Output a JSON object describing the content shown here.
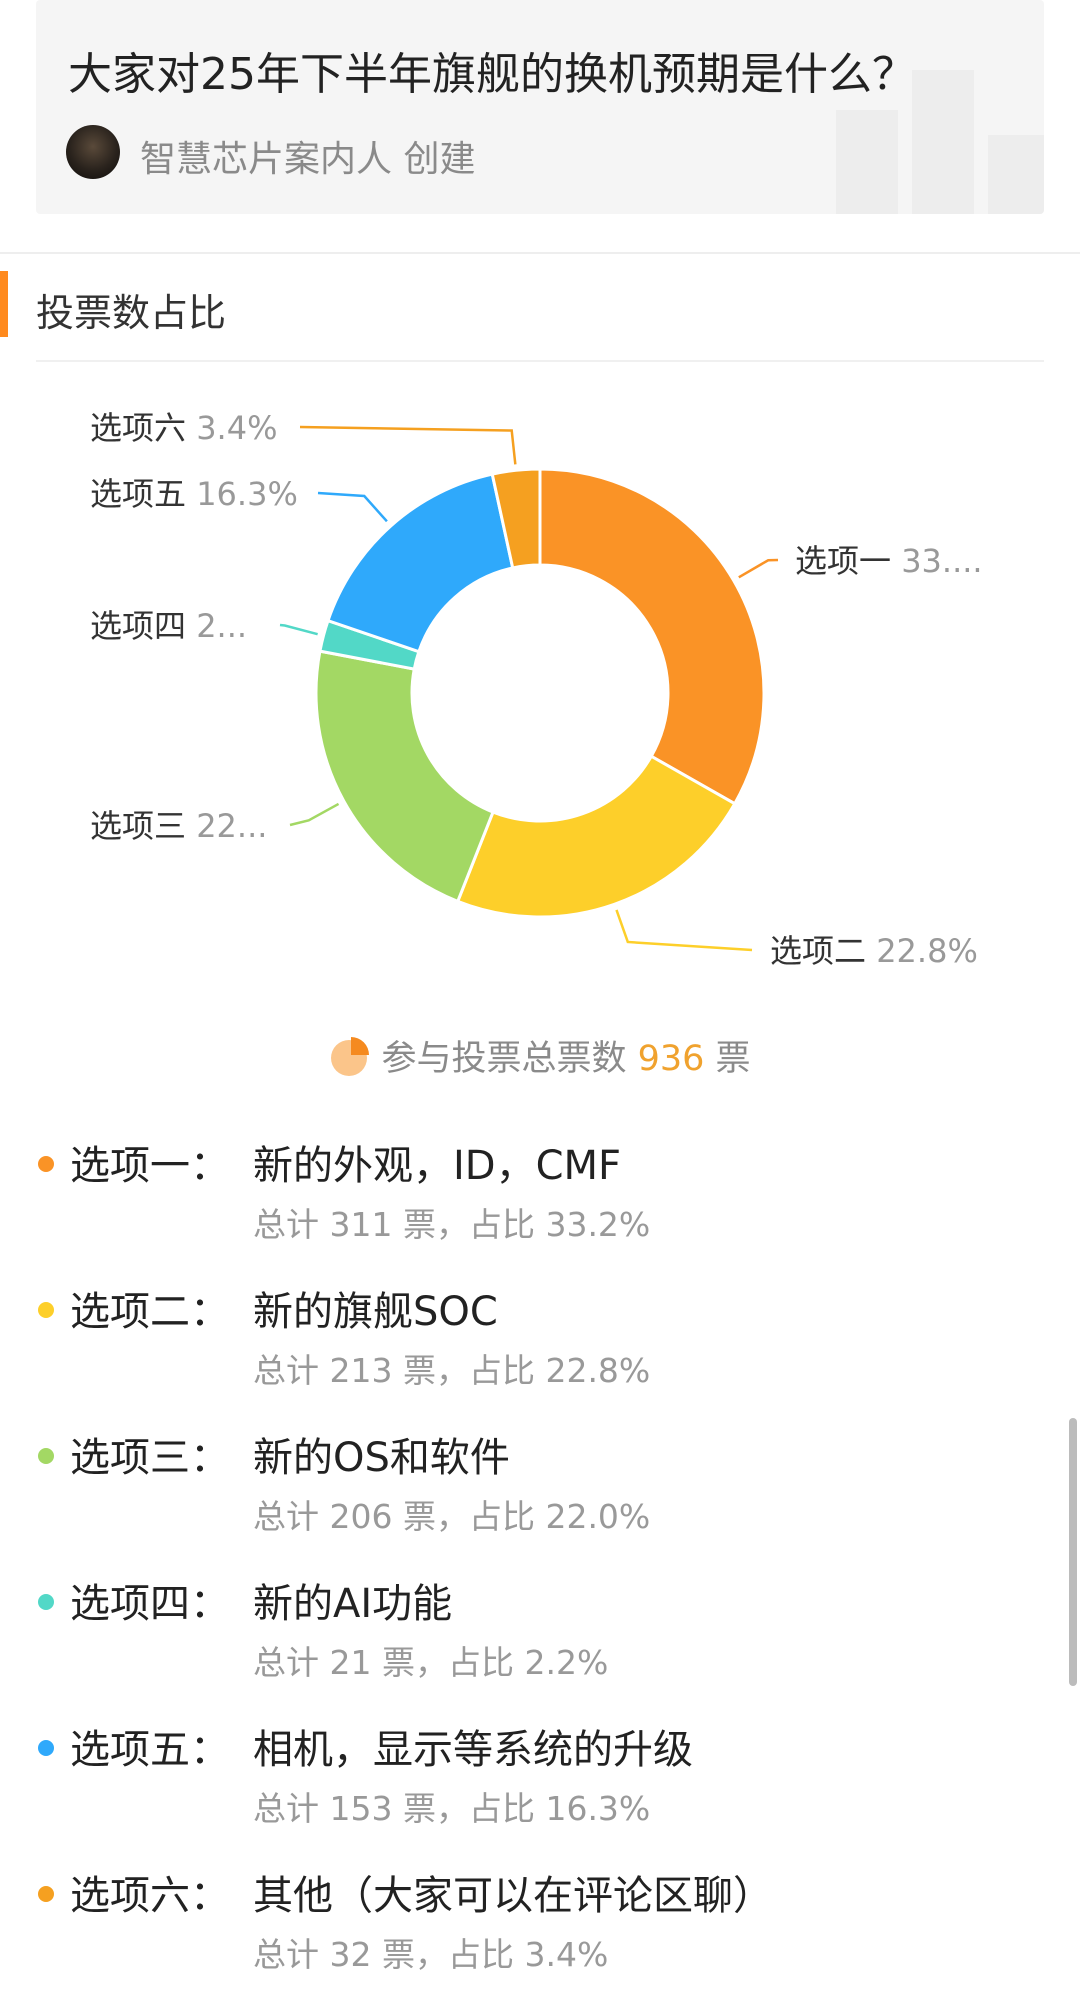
{
  "poll": {
    "title": "大家对25年下半年旗舰的换机预期是什么？",
    "creator": "智慧芯片案内人",
    "created_label": "创建"
  },
  "section": {
    "title": "投票数占比"
  },
  "summary": {
    "label": "参与投票总票数",
    "total": "936",
    "unit": "票"
  },
  "chart_data": {
    "type": "pie",
    "donut": true,
    "slices": [
      {
        "key": "选项一",
        "value": 311,
        "percent": 33.2,
        "color": "#fa9326",
        "label_text": "33...."
      },
      {
        "key": "选项二",
        "value": 213,
        "percent": 22.8,
        "color": "#fdcf2a",
        "label_text": "22.8%"
      },
      {
        "key": "选项三",
        "value": 206,
        "percent": 22.0,
        "color": "#a3d864",
        "label_text": "22..."
      },
      {
        "key": "选项四",
        "value": 21,
        "percent": 2.2,
        "color": "#52d8c7",
        "label_text": "2..."
      },
      {
        "key": "选项五",
        "value": 153,
        "percent": 16.3,
        "color": "#2fa9fb",
        "label_text": "16.3%"
      },
      {
        "key": "选项六",
        "value": 32,
        "percent": 3.4,
        "color": "#f5a020",
        "label_text": "3.4%"
      }
    ]
  },
  "options": [
    {
      "key": "选项一：",
      "text": "新的外观，ID，CMF",
      "stat": "总计 311 票，占比 33.2%",
      "color": "#fa9326"
    },
    {
      "key": "选项二：",
      "text": "新的旗舰SOC",
      "stat": "总计 213 票，占比 22.8%",
      "color": "#fdcf2a"
    },
    {
      "key": "选项三：",
      "text": "新的OS和软件",
      "stat": "总计 206 票，占比 22.0%",
      "color": "#a3d864"
    },
    {
      "key": "选项四：",
      "text": "新的AI功能",
      "stat": "总计 21 票，占比 2.2%",
      "color": "#52d8c7"
    },
    {
      "key": "选项五：",
      "text": "相机，显示等系统的升级",
      "stat": "总计 153 票，占比 16.3%",
      "color": "#2fa9fb"
    },
    {
      "key": "选项六：",
      "text": "其他（大家可以在评论区聊）",
      "stat": "总计 32 票，占比 3.4%",
      "color": "#f5a020"
    }
  ]
}
